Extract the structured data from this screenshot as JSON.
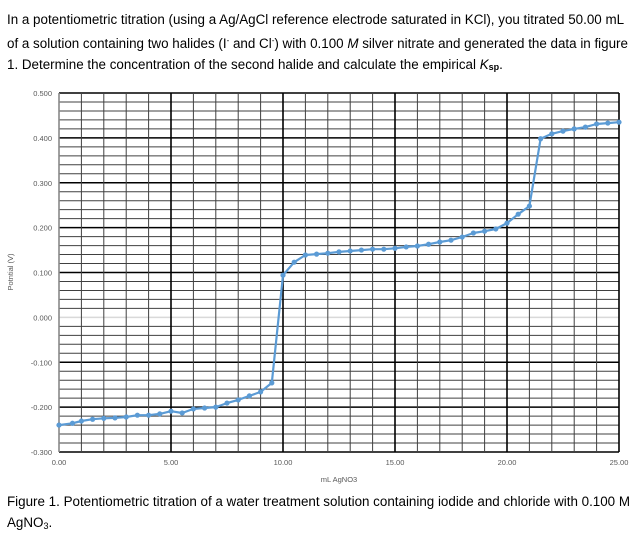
{
  "question": {
    "part1": "In a potentiometric titration (using a Ag/AgCl reference electrode saturated in KCl), you titrated 50.00 mL of a solution containing two halides (I",
    "sup1": "-",
    "part2": " and Cl",
    "sup2": "-",
    "part3": ") with 0.100 ",
    "molar": "M",
    "part4": " silver nitrate and generated the data in figure 1.  Determine the concentration of the second halide and calculate the empirical ",
    "k": "K",
    "ksub": "sp",
    "end": "."
  },
  "caption": {
    "text": "Figure 1. Potentiometric titration of a water treatment solution containing iodide and chloride with 0.100 M AgNO",
    "sub": "3",
    "end": "."
  },
  "chart_data": {
    "type": "line",
    "title": "",
    "xlabel": "mL AgNO3",
    "ylabel": "Potntial (V)",
    "xlim": [
      0,
      25
    ],
    "ylim": [
      -0.3,
      0.5
    ],
    "x_ticks": [
      "0.00",
      "5.00",
      "10.00",
      "15.00",
      "20.00",
      "25.00"
    ],
    "y_ticks": [
      "0.500",
      "0.400",
      "0.300",
      "0.200",
      "0.100",
      "0.000",
      "-0.100",
      "-0.200",
      "-0.300"
    ],
    "grid": {
      "x_major": 5,
      "x_minor": 1,
      "y_major": 0.1,
      "y_minor": 0.02
    },
    "legend": "none",
    "series_color": "#5b9bd5",
    "series": [
      {
        "name": "Potential",
        "x": [
          0.0,
          0.6,
          1.0,
          1.5,
          2.0,
          2.5,
          3.0,
          3.5,
          4.0,
          4.5,
          5.0,
          5.5,
          6.0,
          6.5,
          7.0,
          7.5,
          8.0,
          8.5,
          9.0,
          9.5,
          10.0,
          10.5,
          11.0,
          11.5,
          12.0,
          12.5,
          13.0,
          13.5,
          14.0,
          14.5,
          15.0,
          15.5,
          16.0,
          16.5,
          17.0,
          17.5,
          18.0,
          18.5,
          19.0,
          19.5,
          20.0,
          20.5,
          21.0,
          21.5,
          22.0,
          22.5,
          23.0,
          23.5,
          24.0,
          24.5,
          25.0
        ],
        "y": [
          -0.24,
          -0.236,
          -0.231,
          -0.227,
          -0.225,
          -0.224,
          -0.222,
          -0.218,
          -0.218,
          -0.215,
          -0.209,
          -0.213,
          -0.204,
          -0.202,
          -0.2,
          -0.191,
          -0.184,
          -0.175,
          -0.166,
          -0.146,
          0.094,
          0.123,
          0.139,
          0.141,
          0.143,
          0.146,
          0.148,
          0.15,
          0.152,
          0.152,
          0.154,
          0.157,
          0.159,
          0.163,
          0.168,
          0.172,
          0.179,
          0.188,
          0.192,
          0.197,
          0.21,
          0.23,
          0.248,
          0.398,
          0.409,
          0.415,
          0.42,
          0.424,
          0.431,
          0.433,
          0.435
        ]
      }
    ]
  }
}
